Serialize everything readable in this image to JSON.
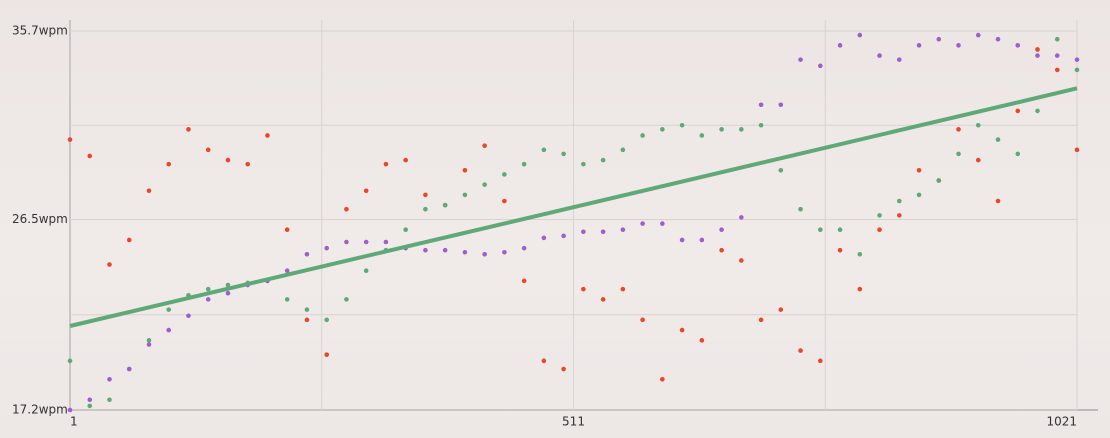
{
  "chart_data": {
    "type": "scatter",
    "x": [
      1,
      21,
      41,
      61,
      81,
      101,
      121,
      141,
      161,
      181,
      201,
      221,
      241,
      261,
      281,
      301,
      321,
      341,
      361,
      381,
      401,
      421,
      441,
      461,
      481,
      501,
      521,
      541,
      561,
      581,
      601,
      621,
      641,
      661,
      681,
      701,
      721,
      741,
      761,
      781,
      801,
      821,
      841,
      861,
      881,
      901,
      921,
      941,
      961,
      981,
      1001,
      1021
    ],
    "series": [
      {
        "color": "#e8472a",
        "style": "dots",
        "values": [
          30.4,
          29.6,
          24.3,
          25.5,
          27.9,
          29.2,
          30.9,
          29.9,
          29.4,
          29.2,
          30.6,
          26.0,
          21.6,
          19.9,
          27.0,
          27.9,
          29.2,
          29.4,
          27.7,
          27.2,
          28.9,
          30.1,
          27.4,
          23.5,
          19.6,
          19.2,
          23.1,
          22.6,
          23.1,
          21.6,
          18.7,
          21.1,
          20.6,
          25.0,
          24.5,
          21.6,
          22.1,
          20.1,
          19.6,
          25.0,
          23.1,
          26.0,
          26.7,
          28.9,
          28.4,
          30.9,
          29.4,
          27.4,
          31.8,
          34.8,
          33.8,
          29.9
        ]
      },
      {
        "color": "#5fa878",
        "style": "dots",
        "values": [
          19.6,
          17.4,
          17.7,
          19.2,
          20.6,
          22.1,
          22.8,
          23.1,
          23.3,
          23.4,
          23.5,
          22.6,
          22.1,
          21.6,
          22.6,
          24.0,
          25.0,
          26.0,
          27.0,
          27.2,
          27.7,
          28.2,
          28.7,
          29.2,
          29.9,
          29.7,
          29.2,
          29.4,
          29.9,
          30.6,
          30.9,
          31.1,
          30.6,
          30.9,
          30.9,
          31.1,
          28.9,
          27.0,
          26.0,
          26.0,
          24.8,
          26.7,
          27.4,
          27.7,
          28.4,
          29.7,
          31.1,
          30.4,
          29.7,
          31.8,
          35.3,
          33.8
        ]
      },
      {
        "color": "#9b5fd0",
        "style": "dots",
        "values": [
          17.2,
          17.7,
          18.7,
          19.2,
          20.4,
          21.1,
          21.8,
          22.6,
          22.9,
          23.3,
          23.5,
          24.0,
          24.8,
          25.1,
          25.4,
          25.4,
          25.4,
          25.1,
          25.0,
          25.0,
          24.9,
          24.8,
          24.9,
          25.1,
          25.6,
          25.7,
          25.9,
          25.9,
          26.0,
          26.3,
          26.3,
          25.5,
          25.5,
          26.0,
          26.6,
          32.1,
          32.1,
          34.3,
          34.0,
          35.0,
          35.5,
          34.5,
          34.3,
          35.0,
          35.3,
          35.0,
          35.5,
          35.3,
          35.0,
          34.5,
          34.5,
          34.3
        ]
      },
      {
        "color": "#5fa878",
        "style": "line",
        "x": [
          1,
          1021
        ],
        "values": [
          21.3,
          32.9
        ]
      }
    ],
    "xlim": [
      1,
      1021
    ],
    "xticks": [
      1,
      511,
      1021
    ],
    "xgrid": [
      256,
      766
    ],
    "ylim": [
      17.2,
      35.7
    ],
    "yticks": [
      {
        "value": 17.2,
        "label": "17.2wpm"
      },
      {
        "value": 26.5,
        "label": "26.5wpm"
      },
      {
        "value": 35.7,
        "label": "35.7wpm"
      }
    ],
    "ygrid": [
      21.85,
      31.1
    ],
    "grid": true
  }
}
